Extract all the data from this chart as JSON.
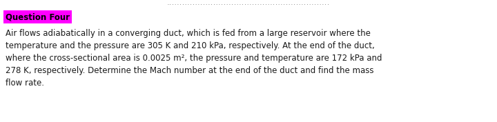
{
  "title_text": "Question Four",
  "title_bg_color": "#FF00FF",
  "title_text_color": "#000000",
  "title_fontsize": 8.5,
  "body_text": "Air flows adiabatically in a converging duct, which is fed from a large reservoir where the\ntemperature and the pressure are 305 K and 210 kPa, respectively. At the end of the duct,\nwhere the cross-sectional area is 0.0025 m², the pressure and temperature are 172 kPa and\n278 K, respectively. Determine the Mach number at the end of the duct and find the mass\nflow rate.",
  "body_fontsize": 8.5,
  "body_text_color": "#1a1a1a",
  "separator_char": "·······························································",
  "separator_color": "#555555",
  "separator_fontsize": 4.5,
  "background_color": "#ffffff",
  "fig_width": 7.2,
  "fig_height": 1.77,
  "dpi": 100
}
